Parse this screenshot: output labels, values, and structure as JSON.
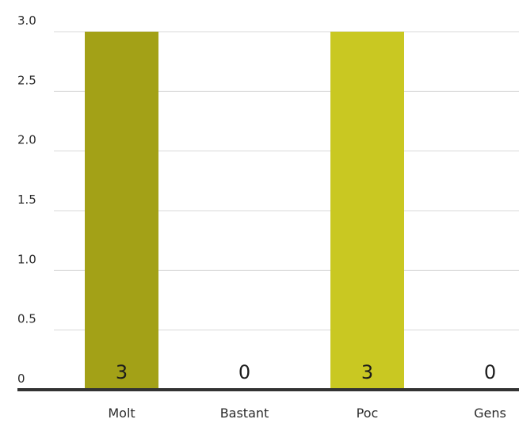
{
  "chart_data": {
    "type": "bar",
    "title": "",
    "xlabel": "",
    "ylabel": "",
    "categories": [
      "Molt",
      "Bastant",
      "Poc",
      "Gens"
    ],
    "values": [
      3,
      0,
      3,
      0
    ],
    "value_labels": [
      "3",
      "0",
      "3",
      "0"
    ],
    "colors": [
      "#a3a117",
      "#b5b31f",
      "#c9c822",
      "#d6d43a"
    ],
    "ylim": [
      0,
      3
    ],
    "yticks": [
      0,
      0.5,
      1.0,
      1.5,
      2.0,
      2.5,
      3.0
    ],
    "ytick_labels": [
      "0",
      "0.5",
      "1.0",
      "1.5",
      "2.0",
      "2.5",
      "3.0"
    ],
    "grid": true,
    "legend": "none"
  }
}
